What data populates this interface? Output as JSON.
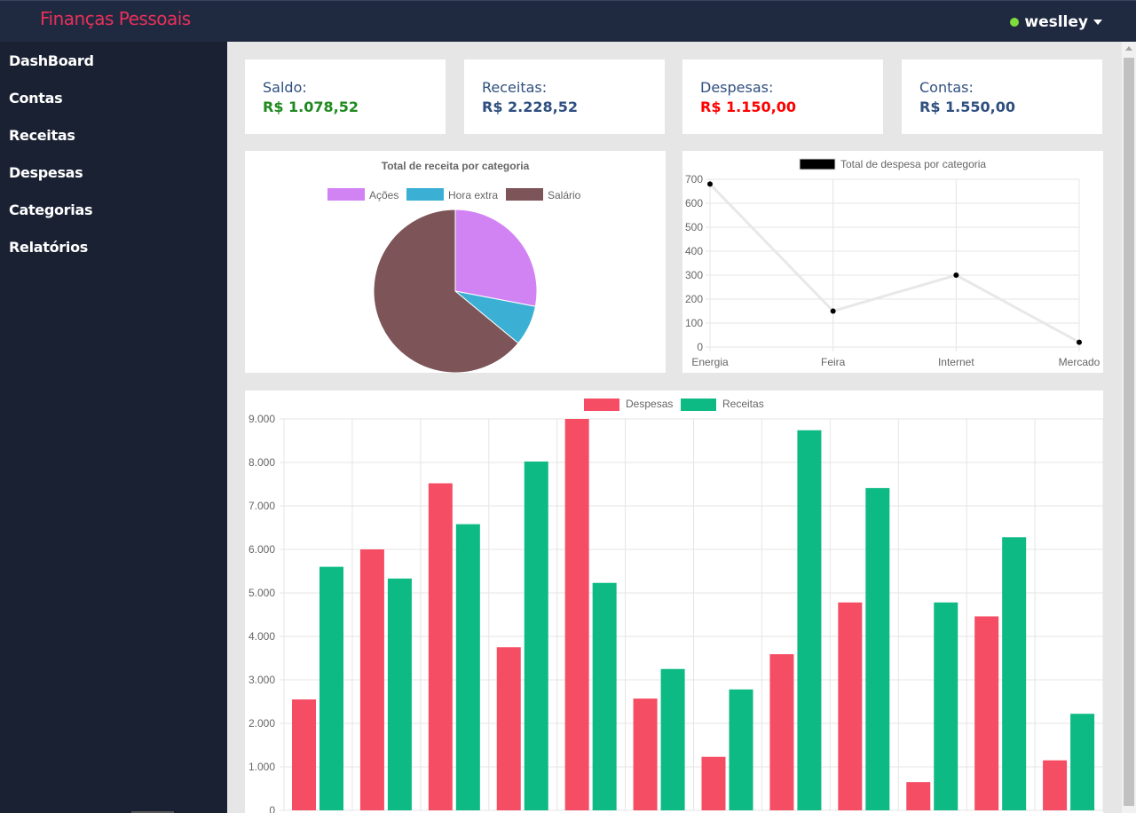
{
  "app": {
    "brand": "Finanças Pessoais",
    "user": "weslley"
  },
  "sidebar": {
    "items": [
      "DashBoard",
      "Contas",
      "Receitas",
      "Despesas",
      "Categorias",
      "Relatórios"
    ]
  },
  "stats": [
    {
      "label": "Saldo:",
      "value": "R$ 1.078,52",
      "color": "#1f8a1f"
    },
    {
      "label": "Receitas:",
      "value": "R$ 2.228,52",
      "color": "#2f4f7f"
    },
    {
      "label": "Despesas:",
      "value": "R$ 1.150,00",
      "color": "#ff0000"
    },
    {
      "label": "Contas:",
      "value": "R$ 1.550,00",
      "color": "#2f4f7f"
    }
  ],
  "chart_data": [
    {
      "type": "pie",
      "title": "Total de receita por categoria",
      "categories": [
        "Ações",
        "Hora extra",
        "Salário"
      ],
      "values": [
        28,
        8,
        64
      ],
      "colors": [
        "#d283f3",
        "#3bb0d4",
        "#7d5458"
      ]
    },
    {
      "type": "line",
      "legend": "Total de despesa por categoria",
      "categories": [
        "Energia",
        "Feira",
        "Internet",
        "Mercado"
      ],
      "values": [
        680,
        150,
        300,
        20
      ],
      "ylim": [
        0,
        700
      ],
      "yticks": [
        "0",
        "100",
        "200",
        "300",
        "400",
        "500",
        "600",
        "700"
      ],
      "line_color": "#e8e8e8",
      "point_color": "#000000"
    },
    {
      "type": "bar",
      "series": [
        {
          "name": "Despesas",
          "color": "#f54d64",
          "values": [
            2550,
            6000,
            7520,
            3750,
            9000,
            2570,
            1230,
            3590,
            4780,
            650,
            4460,
            1150
          ]
        },
        {
          "name": "Receitas",
          "color": "#0dba84",
          "values": [
            5600,
            5330,
            6580,
            8020,
            5230,
            3250,
            2780,
            8740,
            7410,
            4780,
            6280,
            2220
          ]
        }
      ],
      "ylim": [
        0,
        9000
      ],
      "yticks": [
        "0",
        "1.000",
        "2.000",
        "3.000",
        "4.000",
        "5.000",
        "6.000",
        "7.000",
        "8.000",
        "9.000"
      ]
    }
  ]
}
